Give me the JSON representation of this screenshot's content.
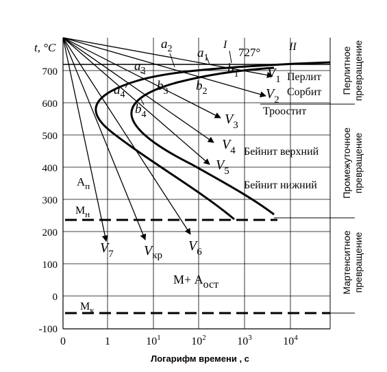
{
  "axes": {
    "y_label": "t, °C",
    "y_ticks": [
      "700",
      "600",
      "500",
      "400",
      "300",
      "200",
      "100",
      "0",
      "-100"
    ],
    "x_ticks": [
      {
        "base": "0",
        "exp": ""
      },
      {
        "base": "1",
        "exp": ""
      },
      {
        "base": "10",
        "exp": "1"
      },
      {
        "base": "10",
        "exp": "2"
      },
      {
        "base": "10",
        "exp": "3"
      },
      {
        "base": "10",
        "exp": "4"
      }
    ],
    "x_label": "Логарифм времени , с"
  },
  "lines": {
    "mn": "М",
    "mn_sub": "н",
    "mk": "М",
    "mk_sub": "к",
    "temp_727": "727°",
    "curve_I": "I",
    "curve_II": "II",
    "a_p": "А",
    "a_p_sub": "п"
  },
  "points": [
    {
      "base": "a",
      "sub": "1"
    },
    {
      "base": "a",
      "sub": "2"
    },
    {
      "base": "a",
      "sub": "3"
    },
    {
      "base": "a",
      "sub": "4"
    },
    {
      "base": "b",
      "sub": "1"
    },
    {
      "base": "b",
      "sub": "2"
    },
    {
      "base": "b",
      "sub": "3"
    },
    {
      "base": "b",
      "sub": "4"
    }
  ],
  "rates": [
    {
      "base": "V",
      "sub": "1"
    },
    {
      "base": "V",
      "sub": "2"
    },
    {
      "base": "V",
      "sub": "3"
    },
    {
      "base": "V",
      "sub": "4"
    },
    {
      "base": "V",
      "sub": "5"
    },
    {
      "base": "V",
      "sub": "6"
    },
    {
      "base": "V",
      "sub": "7"
    },
    {
      "base": "V",
      "sub": "кр"
    }
  ],
  "regions": {
    "perlit": "Перлит",
    "sorbit": "Сорбит",
    "troostit": "Троостит",
    "bainit_upper": "Бейнит верхний",
    "bainit_lower": "Бейнит нижний",
    "martensite_ost_main": "М+ А",
    "martensite_ost_sub": "ост"
  },
  "side_labels": {
    "pearlitic": [
      "Перлитное",
      "превращение"
    ],
    "intermediate": [
      "Промежуточное",
      "превращение"
    ],
    "martensitic": [
      "Мартенситное",
      "превращение"
    ]
  }
}
